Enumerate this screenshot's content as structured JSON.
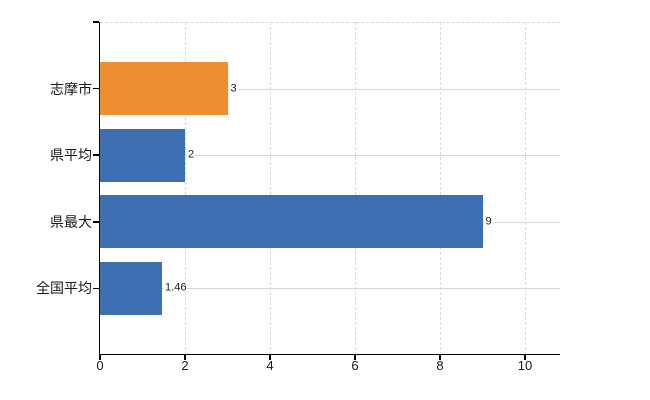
{
  "chart_data": {
    "type": "bar",
    "orientation": "horizontal",
    "title": "",
    "xlabel": "",
    "ylabel": "",
    "categories": [
      "志摩市",
      "県平均",
      "県最大",
      "全国平均"
    ],
    "values": [
      3,
      2,
      9,
      1.46
    ],
    "value_labels": [
      "3",
      "2",
      "9",
      "1.46"
    ],
    "bar_colors": [
      "#ED8C33",
      "#3D6FB2",
      "#3D6FB2",
      "#3D6FB2"
    ],
    "x_ticks": [
      0,
      2,
      4,
      6,
      8,
      10
    ],
    "x_tick_labels": [
      "0",
      "2",
      "4",
      "6",
      "8",
      "10"
    ],
    "xlim": [
      0,
      10.82
    ],
    "grid": true,
    "legend": false,
    "colors": {
      "bar_highlight": "#ED8C33",
      "bar_default": "#3D6FB2",
      "axis": "#000000",
      "gridline_vertical": "#d9d9d9",
      "gridline_horizontal": "#d2d7d2",
      "plot_border_top": "#d7d7d7",
      "value_label_text": "#222222",
      "tick_label_text": "#1a1a1a",
      "background": "#ffffff"
    }
  }
}
